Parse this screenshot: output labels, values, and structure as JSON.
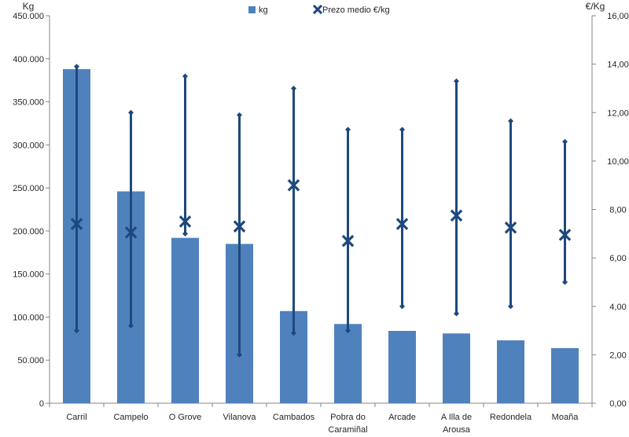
{
  "chart_data": {
    "type": "bar",
    "categories": [
      [
        "Carril"
      ],
      [
        "Campelo"
      ],
      [
        "O Grove"
      ],
      [
        "Vilanova"
      ],
      [
        "Cambados"
      ],
      [
        "Pobra do",
        "Caramiñal"
      ],
      [
        "Arcade"
      ],
      [
        "A Illa de",
        "Arousa"
      ],
      [
        "Redondela"
      ],
      [
        "Moaña"
      ]
    ],
    "series": [
      {
        "name": "kg",
        "type": "bar",
        "axis": "left",
        "values": [
          388000,
          246000,
          192000,
          185000,
          107000,
          92000,
          84000,
          81000,
          73000,
          64000
        ]
      },
      {
        "name": "Prezo medio €/kg",
        "type": "marker-with-range",
        "axis": "right",
        "values": [
          7.4,
          7.05,
          7.5,
          7.3,
          9.0,
          6.7,
          7.4,
          7.75,
          7.25,
          6.95
        ],
        "max": [
          13.9,
          12.0,
          13.5,
          11.9,
          13.0,
          11.3,
          11.3,
          13.3,
          11.65,
          10.8
        ],
        "min": [
          3.0,
          3.2,
          7.0,
          2.0,
          2.9,
          3.0,
          4.0,
          3.7,
          4.0,
          5.0
        ]
      }
    ],
    "y_left": {
      "label": "Kg",
      "ylim": [
        0,
        450000
      ],
      "ticks": [
        "0",
        "50.000",
        "100.000",
        "150.000",
        "200.000",
        "250.000",
        "300.000",
        "350.000",
        "400.000",
        "450.000"
      ]
    },
    "y_right": {
      "label": "€/Kg",
      "ylim": [
        0,
        16
      ],
      "ticks": [
        "0,00",
        "2,00",
        "4,00",
        "6,00",
        "8,00",
        "10,00",
        "12,00",
        "14,00",
        "16,00"
      ]
    },
    "legend_position": "top-center",
    "grid": false,
    "colors": {
      "bar": "#4f81bd",
      "marker": "#1f497d",
      "axis": "#868686"
    }
  }
}
